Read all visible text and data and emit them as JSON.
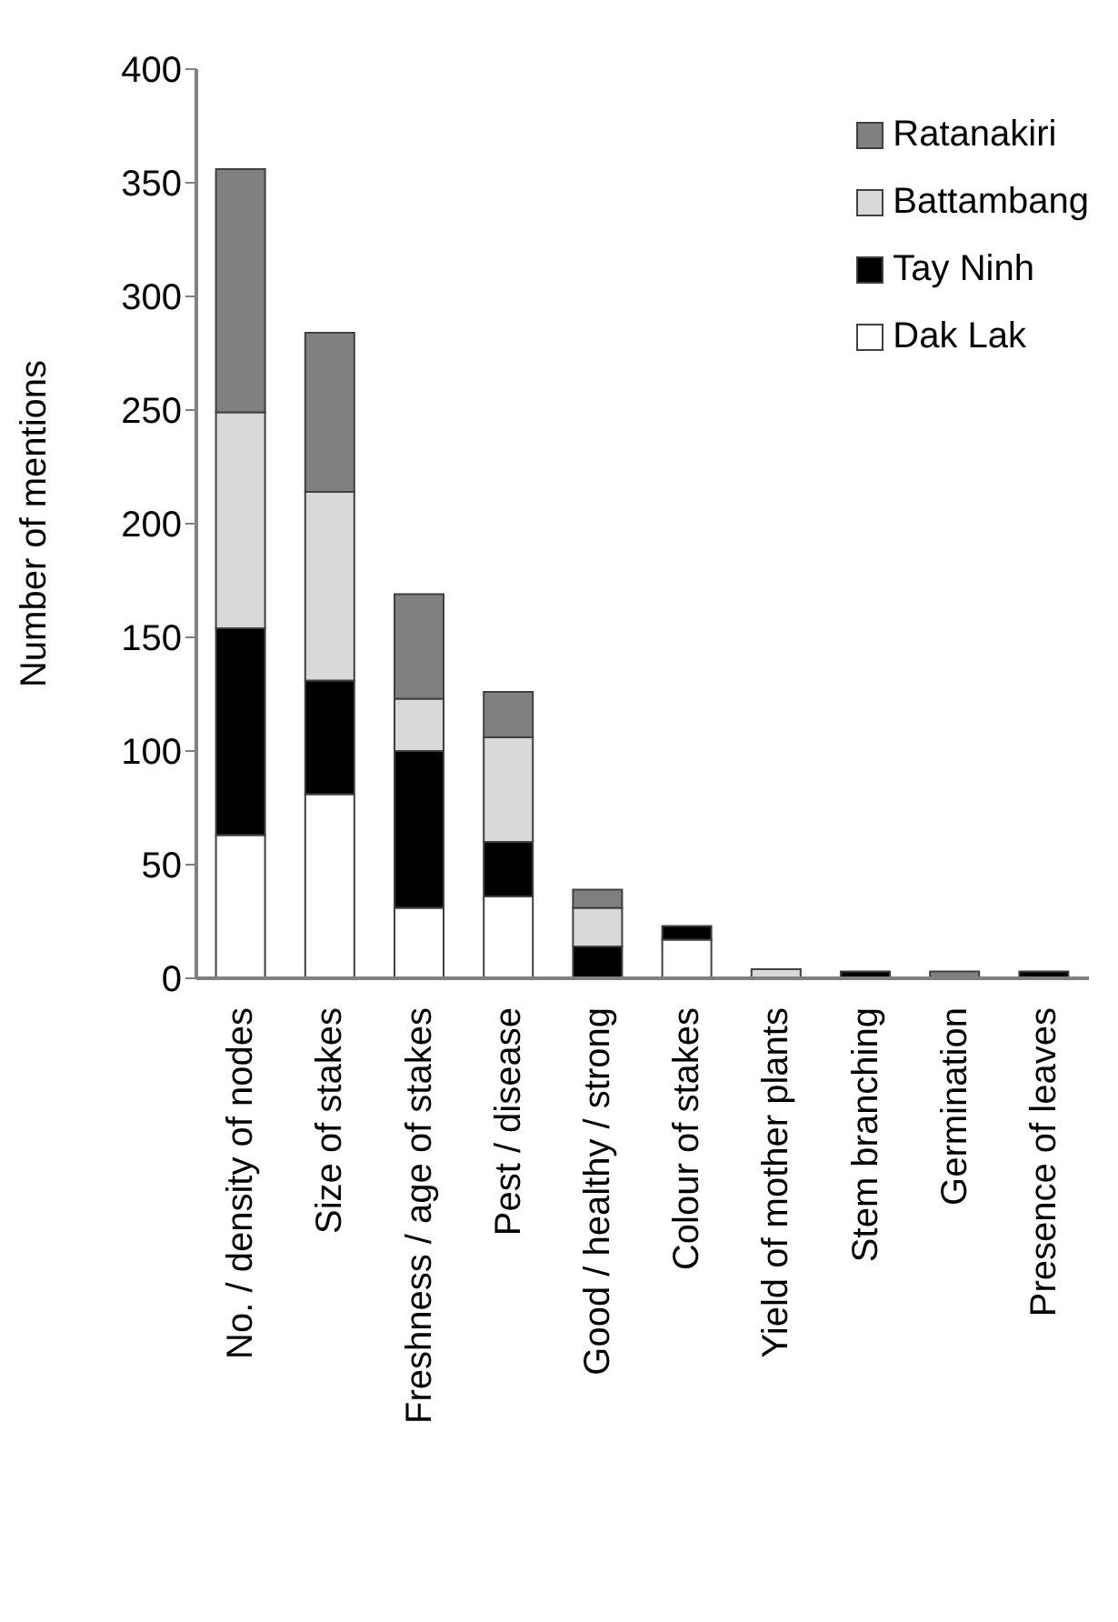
{
  "chart_data": {
    "type": "bar",
    "stacked": true,
    "ylabel": "Number of mentions",
    "categories": [
      "No. / density of nodes",
      "Size of stakes",
      "Freshness / age of stakes",
      "Pest / disease",
      "Good / healthy / strong",
      "Colour of stakes",
      "Yield of mother plants",
      "Stem branching",
      "Germination",
      "Presence of leaves"
    ],
    "series": [
      {
        "name": "Dak Lak",
        "color": "#ffffff",
        "values": [
          63,
          81,
          31,
          36,
          0,
          17,
          0,
          0,
          0,
          0
        ]
      },
      {
        "name": "Tay Ninh",
        "color": "#000000",
        "values": [
          91,
          50,
          69,
          24,
          14,
          6,
          0,
          3,
          0,
          3
        ]
      },
      {
        "name": "Battambang",
        "color": "#d9d9d9",
        "values": [
          95,
          83,
          23,
          46,
          17,
          0,
          4,
          0,
          0,
          0
        ]
      },
      {
        "name": "Ratanakiri",
        "color": "#808080",
        "values": [
          107,
          70,
          46,
          20,
          8,
          0,
          0,
          0,
          3,
          0
        ]
      }
    ],
    "ylim": [
      0,
      400
    ],
    "yticks": [
      0,
      50,
      100,
      150,
      200,
      250,
      300,
      350,
      400
    ],
    "legend": "top right"
  }
}
